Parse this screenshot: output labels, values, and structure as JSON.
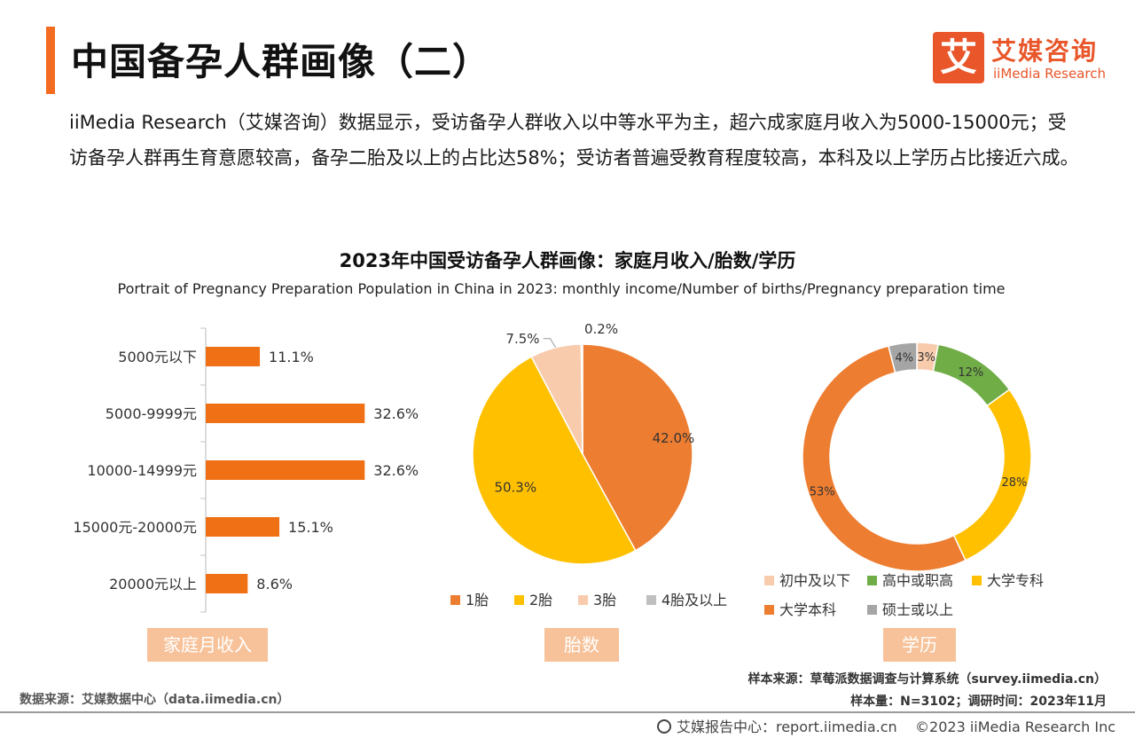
{
  "header": {
    "title": "中国备孕人群画像（二）",
    "accent_color": "#f36c21"
  },
  "logo": {
    "mark_char": "艾",
    "name_cn": "艾媒咨询",
    "name_en": "iiMedia Research",
    "color": "#e8562a"
  },
  "intro_text": "iiMedia Research（艾媒咨询）数据显示，受访备孕人群收入以中等水平为主，超六成家庭月收入为5000-15000元；受访备孕人群再生育意愿较高，备孕二胎及以上的占比达58%；受访者普遍受教育程度较高，本科及以上学历占比接近六成。",
  "chart_title": "2023年中国受访备孕人群画像：家庭月收入/胎数/学历",
  "chart_subtitle": "Portrait of Pregnancy Preparation Population in China in 2023: monthly income/Number of births/Pregnancy preparation time",
  "chart_data": [
    {
      "type": "bar",
      "orientation": "horizontal",
      "label": "家庭月收入",
      "categories": [
        "5000元以下",
        "5000-9999元",
        "10000-14999元",
        "15000元-20000元",
        "20000元以上"
      ],
      "values": [
        11.1,
        32.6,
        32.6,
        15.1,
        8.6
      ],
      "value_labels": [
        "11.1%",
        "32.6%",
        "32.6%",
        "15.1%",
        "8.6%"
      ],
      "unit": "%",
      "color": "#f07015"
    },
    {
      "type": "pie",
      "label": "胎数",
      "categories": [
        "1胎",
        "2胎",
        "3胎",
        "4胎及以上"
      ],
      "values": [
        42.0,
        50.3,
        7.5,
        0.2
      ],
      "value_labels": [
        "42.0%",
        "50.3%",
        "7.5%",
        "0.2%"
      ],
      "colors": [
        "#ed7d31",
        "#ffc000",
        "#f8cbad",
        "#bfbfbf"
      ],
      "legend_position": "bottom"
    },
    {
      "type": "pie",
      "variant": "donut",
      "label": "学历",
      "categories": [
        "初中及以下",
        "高中或职高",
        "大学专科",
        "大学本科",
        "硕士或以上"
      ],
      "values": [
        3,
        12,
        28,
        53,
        4
      ],
      "value_labels": [
        "3%",
        "12%",
        "28%",
        "53%",
        "4%"
      ],
      "colors": [
        "#f8cbad",
        "#70ad47",
        "#ffc000",
        "#ed7d31",
        "#a5a5a5"
      ],
      "legend_position": "bottom"
    }
  ],
  "sample_source": "样本来源：草莓派数据调查与计算系统（survey.iimedia.cn）",
  "sample_size": "样本量：N=3102；调研时间：2023年11月",
  "data_source": "数据来源：艾媒数据中心（data.iimedia.cn）",
  "footer": {
    "report_center": "艾媒报告中心：report.iimedia.cn",
    "copyright": "©2023  iiMedia Research  Inc"
  }
}
